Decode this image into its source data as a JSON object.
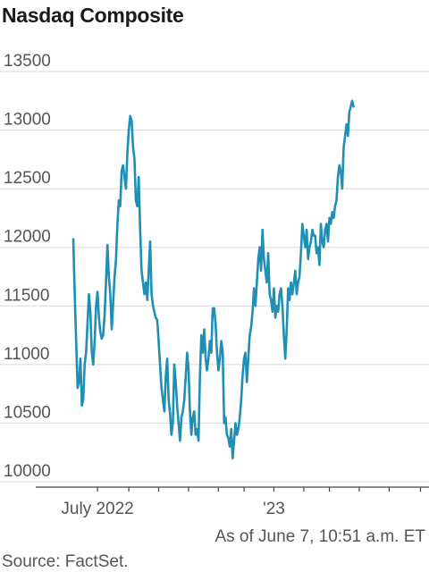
{
  "title": "Nasdaq Composite",
  "note": "As of June 7, 10:51 a.m. ET",
  "source": "Source: FactSet.",
  "colors": {
    "line": "#1f8fb5",
    "grid": "#d8d8d8",
    "text": "#555555"
  },
  "chart_data": {
    "type": "line",
    "title": "Nasdaq Composite",
    "xlabel": "",
    "ylabel": "",
    "ylim": [
      9900,
      13550
    ],
    "yticks": [
      10000,
      10500,
      11000,
      11500,
      12000,
      12500,
      13000,
      13500
    ],
    "ytick_labels": [
      "10000",
      "10500",
      "11000",
      "11500",
      "12000",
      "12500",
      "13000",
      "13500"
    ],
    "x_index_range": [
      0,
      250
    ],
    "xtick_labels": [
      {
        "label": "July 2022",
        "index": 17
      },
      {
        "label": "'23",
        "index": 141
      }
    ],
    "month_tick_indices": [
      17,
      39,
      60,
      81,
      102,
      120,
      141,
      162,
      180,
      201,
      222,
      244
    ],
    "grid": true,
    "legend": "none",
    "series": [
      {
        "points": [
          [
            0,
            12070
          ],
          [
            1,
            11600
          ],
          [
            2,
            11200
          ],
          [
            3,
            10800
          ],
          [
            4,
            10850
          ],
          [
            5,
            11050
          ],
          [
            6,
            10650
          ],
          [
            7,
            10700
          ],
          [
            8,
            11000
          ],
          [
            9,
            11100
          ],
          [
            10,
            11350
          ],
          [
            11,
            11600
          ],
          [
            12,
            11450
          ],
          [
            13,
            11100
          ],
          [
            14,
            11000
          ],
          [
            15,
            11200
          ],
          [
            16,
            11500
          ],
          [
            17,
            11620
          ],
          [
            18,
            11400
          ],
          [
            19,
            11280
          ],
          [
            20,
            11220
          ],
          [
            21,
            11250
          ],
          [
            22,
            11420
          ],
          [
            23,
            11700
          ],
          [
            24,
            12020
          ],
          [
            25,
            11750
          ],
          [
            26,
            11600
          ],
          [
            27,
            11300
          ],
          [
            28,
            11520
          ],
          [
            29,
            11750
          ],
          [
            30,
            11900
          ],
          [
            31,
            12200
          ],
          [
            32,
            12400
          ],
          [
            33,
            12350
          ],
          [
            34,
            12650
          ],
          [
            35,
            12700
          ],
          [
            36,
            12600
          ],
          [
            37,
            12500
          ],
          [
            38,
            12800
          ],
          [
            39,
            13000
          ],
          [
            40,
            13120
          ],
          [
            41,
            13080
          ],
          [
            42,
            12850
          ],
          [
            43,
            12750
          ],
          [
            44,
            12400
          ],
          [
            45,
            12350
          ],
          [
            46,
            12600
          ],
          [
            47,
            12150
          ],
          [
            48,
            11800
          ],
          [
            49,
            11700
          ],
          [
            50,
            11600
          ],
          [
            51,
            11700
          ],
          [
            52,
            11550
          ],
          [
            53,
            11800
          ],
          [
            54,
            12050
          ],
          [
            55,
            11600
          ],
          [
            56,
            11500
          ],
          [
            57,
            11450
          ],
          [
            58,
            11400
          ],
          [
            59,
            11380
          ],
          [
            60,
            11200
          ],
          [
            61,
            11000
          ],
          [
            62,
            10800
          ],
          [
            63,
            10700
          ],
          [
            64,
            10600
          ],
          [
            65,
            10900
          ],
          [
            66,
            11050
          ],
          [
            67,
            10700
          ],
          [
            68,
            10580
          ],
          [
            69,
            10400
          ],
          [
            70,
            10500
          ],
          [
            71,
            11000
          ],
          [
            72,
            10850
          ],
          [
            73,
            10650
          ],
          [
            74,
            10500
          ],
          [
            75,
            10350
          ],
          [
            76,
            10550
          ],
          [
            77,
            10600
          ],
          [
            78,
            10700
          ],
          [
            79,
            10900
          ],
          [
            80,
            11100
          ],
          [
            81,
            10950
          ],
          [
            82,
            10600
          ],
          [
            83,
            10400
          ],
          [
            84,
            10550
          ],
          [
            85,
            10600
          ],
          [
            86,
            10400
          ],
          [
            87,
            10450
          ],
          [
            88,
            10350
          ],
          [
            89,
            10900
          ],
          [
            90,
            11250
          ],
          [
            91,
            11100
          ],
          [
            92,
            11300
          ],
          [
            93,
            11050
          ],
          [
            94,
            10950
          ],
          [
            95,
            11050
          ],
          [
            96,
            11200
          ],
          [
            97,
            11100
          ],
          [
            98,
            11480
          ],
          [
            99,
            11480
          ],
          [
            100,
            11350
          ],
          [
            101,
            11100
          ],
          [
            102,
            10950
          ],
          [
            103,
            11050
          ],
          [
            104,
            11200
          ],
          [
            105,
            11100
          ],
          [
            106,
            10500
          ],
          [
            107,
            10550
          ],
          [
            108,
            10400
          ],
          [
            109,
            10370
          ],
          [
            110,
            10300
          ],
          [
            111,
            10450
          ],
          [
            112,
            10200
          ],
          [
            113,
            10350
          ],
          [
            114,
            10500
          ],
          [
            115,
            10400
          ],
          [
            116,
            10450
          ],
          [
            117,
            10550
          ],
          [
            118,
            10700
          ],
          [
            119,
            10900
          ],
          [
            120,
            11050
          ],
          [
            121,
            11100
          ],
          [
            122,
            10850
          ],
          [
            123,
            11050
          ],
          [
            124,
            11250
          ],
          [
            125,
            11320
          ],
          [
            126,
            11450
          ],
          [
            127,
            11650
          ],
          [
            128,
            11500
          ],
          [
            129,
            11700
          ],
          [
            130,
            11900
          ],
          [
            131,
            12000
          ],
          [
            132,
            11800
          ],
          [
            133,
            12150
          ],
          [
            134,
            11900
          ],
          [
            135,
            11800
          ],
          [
            136,
            11700
          ],
          [
            137,
            11950
          ],
          [
            138,
            11600
          ],
          [
            139,
            11550
          ],
          [
            140,
            11450
          ],
          [
            141,
            11650
          ],
          [
            142,
            11400
          ],
          [
            143,
            11500
          ],
          [
            144,
            11450
          ],
          [
            145,
            11600
          ],
          [
            146,
            11650
          ],
          [
            147,
            11500
          ],
          [
            148,
            11250
          ],
          [
            149,
            11050
          ],
          [
            150,
            11300
          ],
          [
            151,
            11650
          ],
          [
            152,
            11550
          ],
          [
            153,
            11700
          ],
          [
            154,
            11600
          ],
          [
            155,
            11700
          ],
          [
            156,
            11800
          ],
          [
            157,
            11600
          ],
          [
            158,
            11700
          ],
          [
            159,
            11750
          ],
          [
            160,
            11950
          ],
          [
            161,
            12200
          ],
          [
            162,
            12100
          ],
          [
            163,
            12000
          ],
          [
            164,
            12150
          ],
          [
            165,
            11900
          ],
          [
            166,
            12000
          ],
          [
            167,
            12050
          ],
          [
            168,
            12150
          ],
          [
            169,
            12100
          ],
          [
            170,
            12100
          ],
          [
            171,
            11950
          ],
          [
            172,
            12000
          ],
          [
            173,
            11850
          ],
          [
            174,
            12200
          ],
          [
            175,
            12050
          ],
          [
            176,
            12000
          ],
          [
            177,
            12150
          ],
          [
            178,
            12200
          ],
          [
            179,
            12050
          ],
          [
            180,
            12250
          ],
          [
            181,
            12200
          ],
          [
            182,
            12300
          ],
          [
            183,
            12250
          ],
          [
            184,
            12350
          ],
          [
            185,
            12400
          ],
          [
            186,
            12600
          ],
          [
            187,
            12700
          ],
          [
            188,
            12650
          ],
          [
            189,
            12500
          ],
          [
            190,
            12850
          ],
          [
            191,
            12950
          ],
          [
            192,
            13050
          ],
          [
            193,
            12950
          ],
          [
            194,
            13150
          ],
          [
            195,
            13200
          ],
          [
            196,
            13250
          ],
          [
            197,
            13200
          ]
        ]
      }
    ]
  }
}
